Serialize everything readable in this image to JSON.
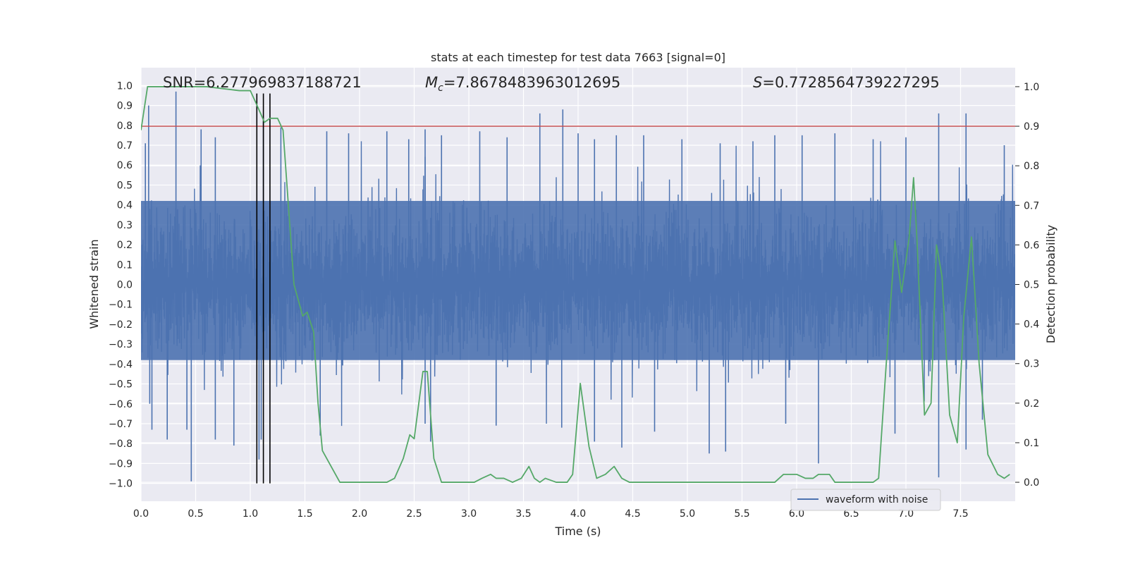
{
  "chart_data": {
    "type": "line",
    "title": "stats at each timestep for test data 7663 [signal=0]",
    "xlabel": "Time (s)",
    "ylabel": "Whitened strain",
    "y2label": "Detection probability",
    "xlim": [
      0.0,
      8.0
    ],
    "ylim": [
      -1.09,
      1.09
    ],
    "y2lim": [
      -0.048,
      1.048
    ],
    "xticks": [
      "0.0",
      "0.5",
      "1.0",
      "1.5",
      "2.0",
      "2.5",
      "3.0",
      "3.5",
      "4.0",
      "4.5",
      "5.0",
      "5.5",
      "6.0",
      "6.5",
      "7.0",
      "7.5"
    ],
    "yticks": [
      "1.0",
      "0.9",
      "0.8",
      "0.7",
      "0.6",
      "0.5",
      "0.4",
      "0.3",
      "0.2",
      "0.1",
      "0.0",
      "-0.1",
      "-0.2",
      "-0.3",
      "-0.4",
      "-0.5",
      "-0.6",
      "-0.7",
      "-0.8",
      "-0.9",
      "-1.0"
    ],
    "y2ticks": [
      "1.0",
      "0.9",
      "0.8",
      "0.7",
      "0.6",
      "0.5",
      "0.4",
      "0.3",
      "0.2",
      "0.1",
      "0.0"
    ],
    "annotations": {
      "snr": "SNR=6.277969837188721",
      "mc_symbol": "M",
      "mc_sub": "c",
      "mc_value": "=7.8678483963012695",
      "s_symbol": "S",
      "s_value": "=0.7728564739227295"
    },
    "legend": {
      "label": "waveform with noise",
      "loc": "lower right"
    },
    "threshold": {
      "axis": "right",
      "value": 0.9,
      "color": "#c44e52"
    },
    "vlines": [
      1.06,
      1.12,
      1.18
    ],
    "series": [
      {
        "name": "waveform with noise",
        "axis": "left",
        "color": "#4c72b0",
        "kind": "noise",
        "typical_envelope": [
          -0.38,
          0.42
        ],
        "peaks_pos": [
          [
            0.04,
            0.71
          ],
          [
            0.07,
            0.9
          ],
          [
            0.32,
            0.97
          ],
          [
            0.55,
            0.78
          ],
          [
            0.68,
            0.74
          ],
          [
            1.12,
            0.82
          ],
          [
            1.28,
            0.79
          ],
          [
            1.7,
            0.77
          ],
          [
            1.9,
            0.76
          ],
          [
            2.25,
            0.77
          ],
          [
            2.45,
            0.73
          ],
          [
            2.6,
            0.78
          ],
          [
            2.75,
            0.75
          ],
          [
            3.1,
            0.77
          ],
          [
            3.35,
            0.74
          ],
          [
            3.65,
            0.86
          ],
          [
            3.86,
            0.88
          ],
          [
            4.0,
            0.76
          ],
          [
            4.15,
            0.73
          ],
          [
            4.35,
            0.75
          ],
          [
            4.6,
            0.75
          ],
          [
            4.95,
            0.73
          ],
          [
            5.3,
            0.71
          ],
          [
            5.6,
            0.72
          ],
          [
            5.8,
            0.75
          ],
          [
            6.05,
            0.75
          ],
          [
            6.35,
            0.76
          ],
          [
            6.7,
            0.73
          ],
          [
            7.0,
            0.74
          ],
          [
            7.3,
            0.86
          ],
          [
            7.55,
            0.86
          ],
          [
            7.9,
            0.7
          ]
        ],
        "peaks_neg": [
          [
            0.08,
            -0.6
          ],
          [
            0.1,
            -0.73
          ],
          [
            0.24,
            -0.78
          ],
          [
            0.42,
            -0.73
          ],
          [
            0.46,
            -0.99
          ],
          [
            0.68,
            -0.78
          ],
          [
            0.85,
            -0.81
          ],
          [
            1.08,
            -0.88
          ],
          [
            1.1,
            -0.78
          ],
          [
            1.64,
            -0.76
          ],
          [
            2.6,
            -0.7
          ],
          [
            2.65,
            -0.79
          ],
          [
            3.25,
            -0.71
          ],
          [
            3.85,
            -0.72
          ],
          [
            4.15,
            -0.79
          ],
          [
            4.4,
            -0.82
          ],
          [
            4.7,
            -0.74
          ],
          [
            5.2,
            -0.85
          ],
          [
            5.35,
            -0.84
          ],
          [
            5.9,
            -0.7
          ],
          [
            6.2,
            -0.9
          ],
          [
            6.9,
            -0.75
          ],
          [
            7.3,
            -0.97
          ],
          [
            7.55,
            -0.83
          ],
          [
            7.7,
            -0.68
          ]
        ]
      },
      {
        "name": "detection probability",
        "axis": "right",
        "color": "#55a868",
        "x": [
          0.0,
          0.06,
          0.3,
          0.6,
          0.9,
          1.0,
          1.05,
          1.13,
          1.18,
          1.25,
          1.3,
          1.4,
          1.48,
          1.52,
          1.58,
          1.62,
          1.66,
          1.72,
          1.82,
          2.0,
          2.15,
          2.25,
          2.32,
          2.4,
          2.46,
          2.5,
          2.58,
          2.62,
          2.68,
          2.75,
          2.85,
          2.95,
          3.05,
          3.12,
          3.2,
          3.25,
          3.32,
          3.4,
          3.48,
          3.55,
          3.6,
          3.65,
          3.7,
          3.8,
          3.9,
          3.95,
          4.02,
          4.1,
          4.17,
          4.25,
          4.33,
          4.4,
          4.47,
          4.55,
          4.65,
          4.75,
          4.85,
          5.0,
          5.2,
          5.5,
          5.8,
          5.88,
          5.95,
          6.0,
          6.08,
          6.15,
          6.2,
          6.3,
          6.35,
          6.45,
          6.6,
          6.7,
          6.75,
          6.82,
          6.9,
          6.96,
          7.03,
          7.07,
          7.1,
          7.17,
          7.23,
          7.28,
          7.33,
          7.4,
          7.47,
          7.53,
          7.6,
          7.67,
          7.75,
          7.84,
          7.9,
          7.95
        ],
        "y": [
          0.89,
          1.0,
          1.0,
          1.0,
          0.99,
          0.99,
          0.96,
          0.91,
          0.92,
          0.92,
          0.89,
          0.5,
          0.42,
          0.43,
          0.38,
          0.2,
          0.08,
          0.05,
          0.0,
          0.0,
          0.0,
          0.0,
          0.01,
          0.06,
          0.12,
          0.11,
          0.28,
          0.28,
          0.06,
          0.0,
          0.0,
          0.0,
          0.0,
          0.01,
          0.02,
          0.01,
          0.01,
          0.0,
          0.01,
          0.04,
          0.01,
          0.0,
          0.01,
          0.0,
          0.0,
          0.02,
          0.25,
          0.09,
          0.01,
          0.02,
          0.04,
          0.01,
          0.0,
          0.0,
          0.0,
          0.0,
          0.0,
          0.0,
          0.0,
          0.0,
          0.0,
          0.02,
          0.02,
          0.02,
          0.01,
          0.01,
          0.02,
          0.02,
          0.0,
          0.0,
          0.0,
          0.0,
          0.01,
          0.3,
          0.61,
          0.48,
          0.62,
          0.77,
          0.62,
          0.17,
          0.2,
          0.6,
          0.52,
          0.17,
          0.1,
          0.42,
          0.62,
          0.3,
          0.07,
          0.02,
          0.01,
          0.02
        ]
      }
    ]
  }
}
